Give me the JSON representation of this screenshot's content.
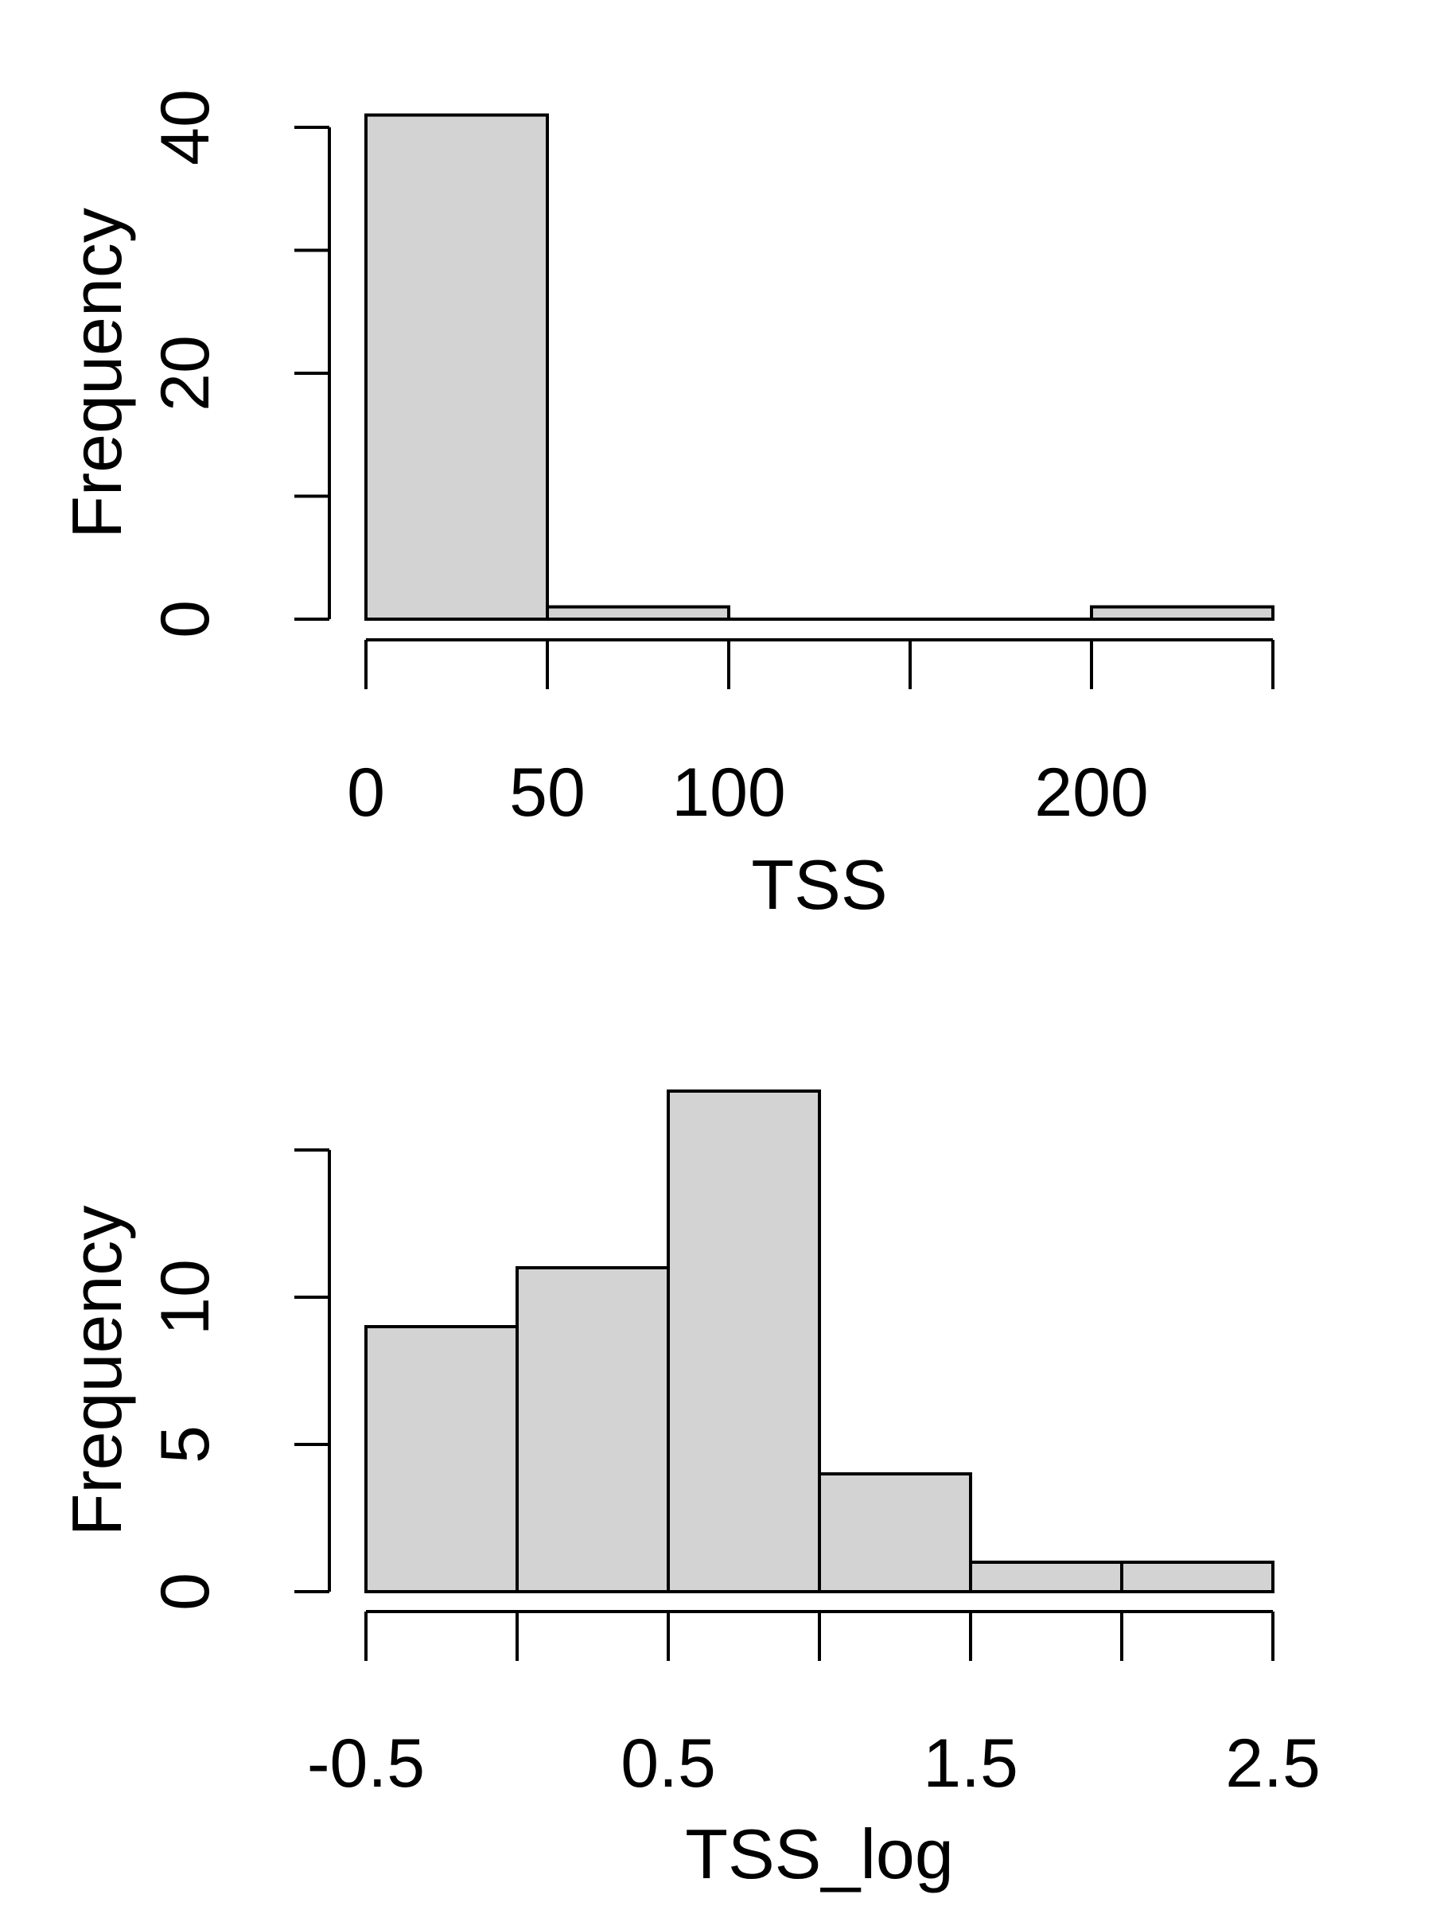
{
  "chart_data": [
    {
      "type": "bar",
      "title": "",
      "xlabel": "TSS",
      "ylabel": "Frequency",
      "bins": [
        [
          0,
          50
        ],
        [
          50,
          100
        ],
        [
          100,
          150
        ],
        [
          150,
          200
        ],
        [
          200,
          250
        ]
      ],
      "values": [
        41,
        1,
        0,
        0,
        1
      ],
      "xlim": [
        0,
        250
      ],
      "ylim": [
        0,
        40
      ],
      "xticks": [
        0,
        50,
        100,
        150,
        200,
        250
      ],
      "xtick_labels": [
        "0",
        "50",
        "100",
        "",
        "200",
        ""
      ],
      "yticks": [
        0,
        10,
        20,
        30,
        40
      ],
      "ytick_labels": [
        "0",
        "",
        "20",
        "",
        "40"
      ],
      "grid": false,
      "bar_color": "#d3d3d3"
    },
    {
      "type": "bar",
      "title": "",
      "xlabel": "TSS_log",
      "ylabel": "Frequency",
      "bins": [
        [
          -0.5,
          0
        ],
        [
          0,
          0.5
        ],
        [
          0.5,
          1
        ],
        [
          1,
          1.5
        ],
        [
          1.5,
          2
        ],
        [
          2,
          2.5
        ]
      ],
      "values": [
        9,
        11,
        17,
        4,
        1,
        1
      ],
      "xlim": [
        -0.5,
        2.5
      ],
      "ylim": [
        0,
        15
      ],
      "xticks": [
        -0.5,
        0,
        0.5,
        1,
        1.5,
        2,
        2.5
      ],
      "xtick_labels": [
        "-0.5",
        "",
        "0.5",
        "",
        "1.5",
        "",
        "2.5"
      ],
      "yticks": [
        0,
        5,
        10,
        15
      ],
      "ytick_labels": [
        "0",
        "5",
        "10",
        ""
      ],
      "grid": false,
      "bar_color": "#d3d3d3"
    }
  ]
}
